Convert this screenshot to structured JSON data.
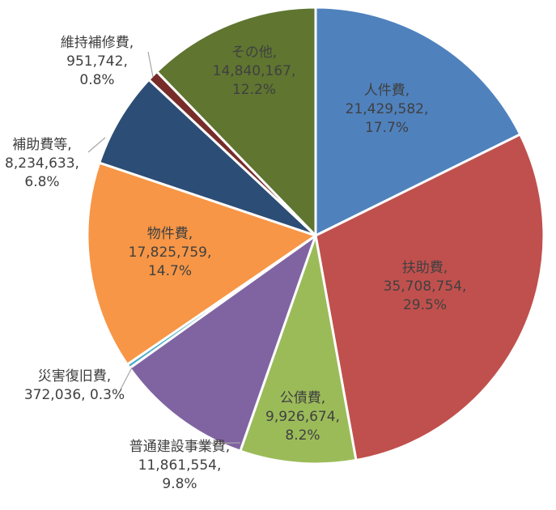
{
  "chart_data": {
    "type": "pie",
    "title": "",
    "slices": [
      {
        "name": "人件費",
        "value": 21429582,
        "value_text": "21,429,582,",
        "percent_text": "17.7%",
        "color": "#4f81bd",
        "label_color": "#404040"
      },
      {
        "name": "扶助費",
        "value": 35708754,
        "value_text": "35,708,754,",
        "percent_text": "29.5%",
        "color": "#c0504d",
        "label_color": "#404040"
      },
      {
        "name": "公債費",
        "value": 9926674,
        "value_text": "9,926,674,",
        "percent_text": "8.2%",
        "color": "#9bbb59",
        "label_color": "#404040"
      },
      {
        "name": "普通建設事業費",
        "value": 11861554,
        "value_text": "11,861,554,",
        "percent_text": "9.8%",
        "color": "#8064a2",
        "label_color": "#404040"
      },
      {
        "name": "災害復旧費",
        "value": 372036,
        "value_text": "372,036,",
        "percent_text": "0.3%",
        "color": "#4bacc6",
        "label_color": "#404040"
      },
      {
        "name": "物件費",
        "value": 17825759,
        "value_text": "17,825,759,",
        "percent_text": "14.7%",
        "color": "#f79646",
        "label_color": "#404040"
      },
      {
        "name": "補助費等",
        "value": 8234633,
        "value_text": "8,234,633,",
        "percent_text": "6.8%",
        "color": "#2c4d75",
        "label_color": "#404040"
      },
      {
        "name": "維持補修費",
        "value": 951742,
        "value_text": "951,742,",
        "percent_text": "0.8%",
        "color": "#772c2a",
        "label_color": "#404040"
      },
      {
        "name": "その他",
        "value": 14840167,
        "value_text": "14,840,167,",
        "percent_text": "12.2%",
        "color": "#5f7530",
        "label_color": "#404040"
      }
    ]
  }
}
